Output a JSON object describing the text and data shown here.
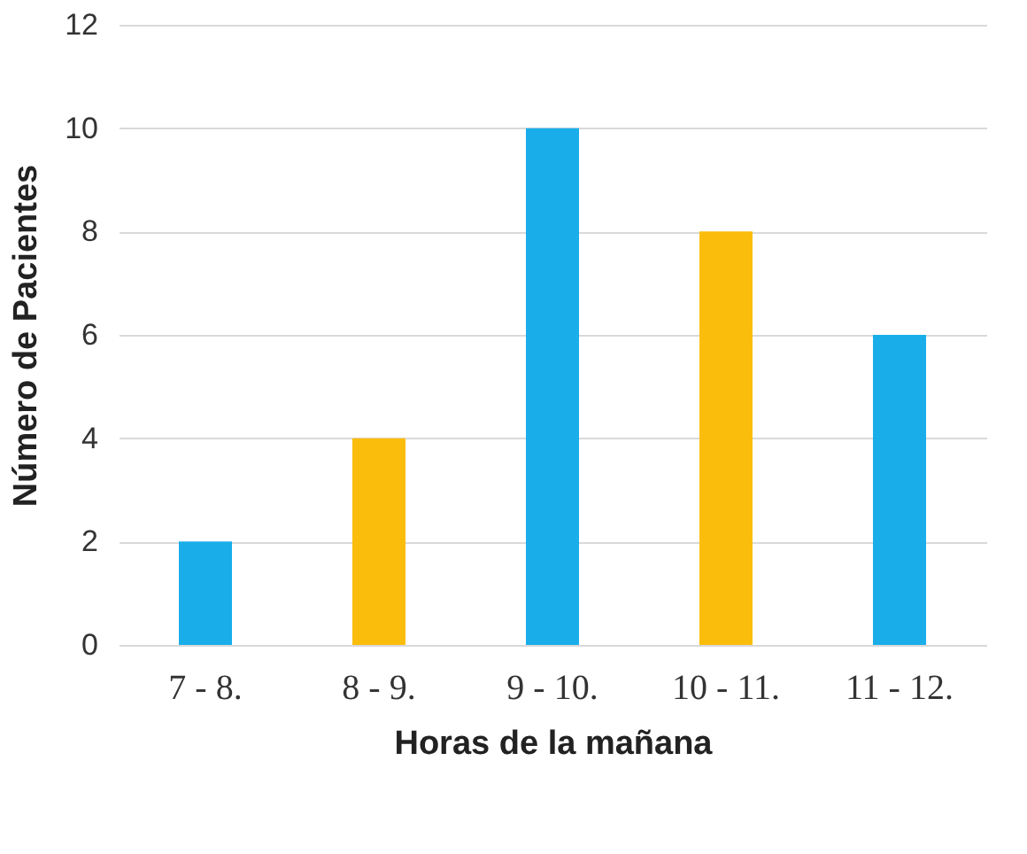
{
  "chart_data": {
    "type": "bar",
    "xlabel": "Horas de la mañana",
    "ylabel": "Número de Pacientes",
    "categories": [
      "7 - 8.",
      "8 - 9.",
      "9 - 10.",
      "10 - 11.",
      "11 - 12."
    ],
    "values": [
      2,
      4,
      10,
      8,
      6
    ],
    "colors": [
      "#19aeea",
      "#fbbd0b",
      "#19aeea",
      "#fbbd0b",
      "#19aeea"
    ],
    "ylim": [
      0,
      12
    ],
    "yticks": [
      0,
      2,
      4,
      6,
      8,
      10,
      12
    ],
    "grid": "y"
  }
}
